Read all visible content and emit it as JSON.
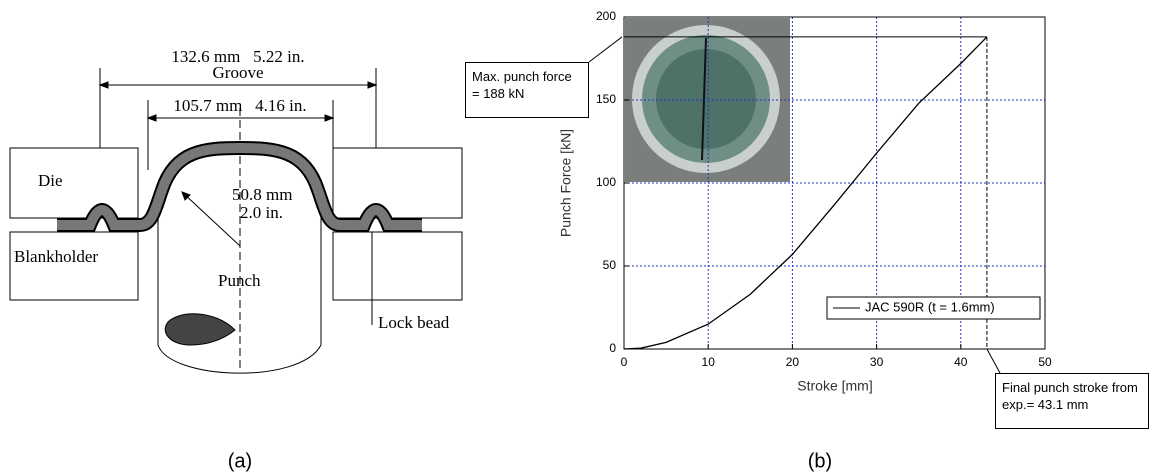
{
  "diagram": {
    "groove_dim": "132.6 mm   5.22 in.",
    "groove_label": "Groove",
    "inner_dim": "105.7 mm   4.16 in.",
    "die": "Die",
    "radius_mm": "50.8 mm",
    "radius_in": "2.0 in.",
    "blankholder": "Blankholder",
    "punch": "Punch",
    "lock_bead": "Lock bead",
    "caption": "(a)"
  },
  "chart_data": {
    "type": "line",
    "xlabel": "Stroke [mm]",
    "ylabel": "Punch Force [kN]",
    "x": [
      0,
      2,
      5,
      10,
      15,
      20,
      25,
      30,
      35,
      40,
      43.1
    ],
    "series": [
      {
        "name": "JAC 590R (t = 1.6mm)",
        "color": "#000000",
        "values": [
          0,
          0.5,
          4,
          15,
          33,
          57,
          87,
          118,
          148,
          172,
          188
        ]
      }
    ],
    "xlim": [
      0,
      50
    ],
    "ylim": [
      0,
      200
    ],
    "xticks": [
      0,
      10,
      20,
      30,
      40,
      50
    ],
    "yticks": [
      0,
      50,
      100,
      150,
      200
    ],
    "grid": true,
    "annotations": [
      "Max. punch force = 188 kN",
      "Final punch stroke from exp.= 43.1 mm"
    ],
    "caption": "(b)"
  }
}
